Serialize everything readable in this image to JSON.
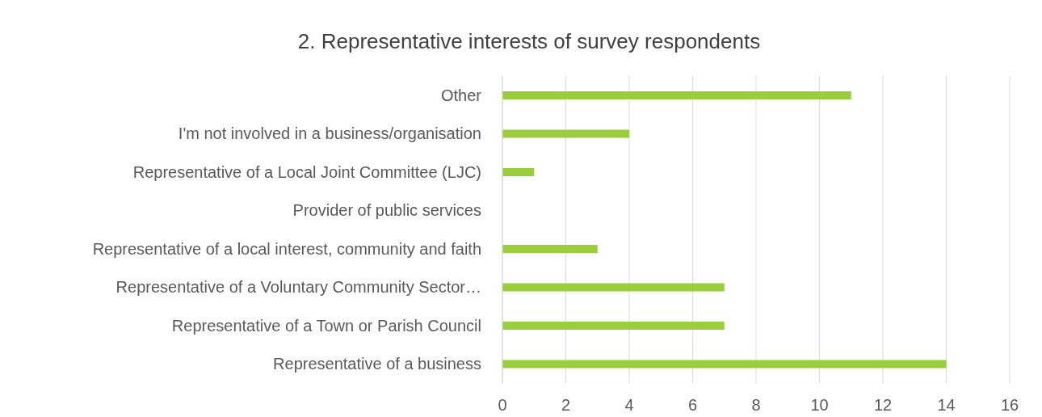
{
  "chart_data": {
    "type": "bar",
    "orientation": "horizontal",
    "title": "2. Representative interests of survey respondents",
    "categories": [
      "Other",
      "I'm not involved in a business/organisation",
      "Representative of a Local Joint Committee (LJC)",
      "Provider of public services",
      "Representative of a local interest, community and faith",
      "Representative of a Voluntary Community Sector…",
      "Representative of a Town or Parish Council",
      "Representative of a business"
    ],
    "values": [
      11,
      4,
      1,
      0,
      3,
      7,
      7,
      14
    ],
    "color": "#9acd3c",
    "xlim": [
      0,
      16
    ],
    "xticks": [
      0,
      2,
      4,
      6,
      8,
      10,
      12,
      14,
      16
    ],
    "grid": "x",
    "legend": false
  }
}
